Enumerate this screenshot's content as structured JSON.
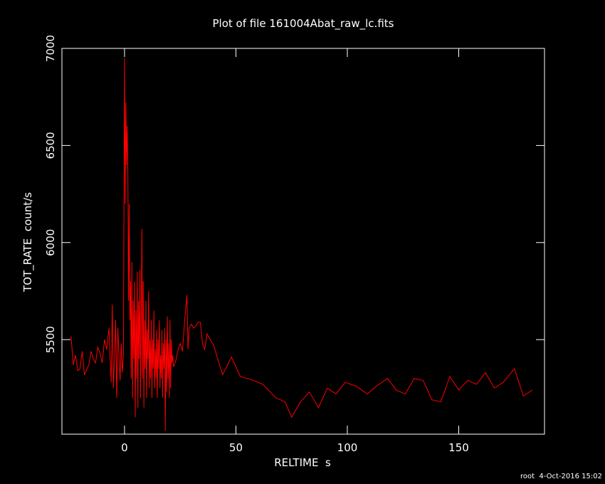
{
  "chart_data": {
    "type": "line",
    "title": "Plot of file 161004Abat_raw_lc.fits",
    "xlabel": "RELTIME  s",
    "ylabel": "TOT_RATE  count/s",
    "footer": "root  4-Oct-2016 15:02",
    "color": "#ff0000",
    "xlim": [
      -28.1,
      188.5
    ],
    "ylim": [
      5013,
      7000
    ],
    "xticks": [
      0,
      50,
      100,
      150
    ],
    "yticks": [
      5500,
      6000,
      6500,
      7000
    ],
    "x": [
      -24,
      -23,
      -22,
      -21,
      -20,
      -19,
      -18,
      -16,
      -15,
      -14,
      -13,
      -12,
      -11,
      -10,
      -9,
      -8,
      -7,
      -6,
      -5.5,
      -5,
      -4.5,
      -4,
      -3.5,
      -3,
      -2.5,
      -2,
      -1.5,
      -1,
      -0.5,
      0,
      0.3,
      0.6,
      0.9,
      1.2,
      1.5,
      1.8,
      2.1,
      2.4,
      2.7,
      3,
      3.3,
      3.6,
      3.9,
      4.2,
      4.5,
      4.8,
      5.1,
      5.4,
      5.7,
      6,
      6.3,
      6.6,
      6.9,
      7.2,
      7.5,
      7.8,
      8.1,
      8.4,
      8.7,
      9,
      9.3,
      9.6,
      9.9,
      10.2,
      10.5,
      10.8,
      11.1,
      11.4,
      11.7,
      12,
      12.3,
      12.6,
      12.9,
      13.2,
      13.5,
      13.8,
      14.1,
      14.4,
      14.7,
      15,
      15.3,
      15.6,
      15.9,
      16.2,
      16.5,
      16.8,
      17.1,
      17.4,
      17.7,
      18,
      18.3,
      18.6,
      18.9,
      19.2,
      19.5,
      19.8,
      20.1,
      20.4,
      20.7,
      21,
      21.3,
      21.6,
      22,
      23,
      24,
      25,
      26,
      27,
      28,
      28.5,
      29,
      30,
      31,
      32,
      33,
      34,
      35,
      36,
      37,
      40,
      44,
      48,
      52,
      58,
      62,
      68,
      72,
      75,
      79,
      83,
      87,
      91,
      95,
      99,
      104,
      109,
      113,
      118,
      122,
      126,
      130,
      134,
      138,
      142,
      146,
      150,
      154,
      158,
      162,
      166,
      170,
      175,
      179,
      183
    ],
    "values": [
      5517,
      5370,
      5420,
      5340,
      5350,
      5440,
      5320,
      5370,
      5440,
      5400,
      5380,
      5460,
      5430,
      5380,
      5500,
      5450,
      5560,
      5280,
      5680,
      5250,
      5400,
      5600,
      5200,
      5560,
      5420,
      5290,
      5480,
      5330,
      5420,
      6950,
      6200,
      6720,
      6400,
      6600,
      6350,
      5700,
      6200,
      5600,
      5800,
      5300,
      5900,
      5200,
      5700,
      5400,
      5800,
      5100,
      5650,
      5300,
      5850,
      5150,
      5700,
      5400,
      5860,
      5200,
      5600,
      6070,
      5300,
      5800,
      5150,
      5600,
      5350,
      5700,
      5200,
      5550,
      5400,
      5750,
      5250,
      5500,
      5300,
      5600,
      5200,
      5500,
      5350,
      5650,
      5250,
      5450,
      5300,
      5550,
      5200,
      5500,
      5350,
      5600,
      5250,
      5420,
      5300,
      5550,
      5200,
      5480,
      5350,
      5560,
      5030,
      5500,
      5230,
      5620,
      5300,
      5480,
      5200,
      5600,
      5250,
      5500,
      5380,
      5420,
      5360,
      5390,
      5450,
      5480,
      5440,
      5600,
      5730,
      5450,
      5560,
      5580,
      5560,
      5570,
      5590,
      5590,
      5480,
      5450,
      5530,
      5470,
      5320,
      5410,
      5310,
      5290,
      5270,
      5200,
      5180,
      5100,
      5180,
      5230,
      5150,
      5250,
      5220,
      5280,
      5260,
      5220,
      5260,
      5300,
      5240,
      5220,
      5300,
      5290,
      5190,
      5180,
      5310,
      5240,
      5290,
      5270,
      5330,
      5250,
      5280,
      5350,
      5210,
      5240
    ]
  }
}
